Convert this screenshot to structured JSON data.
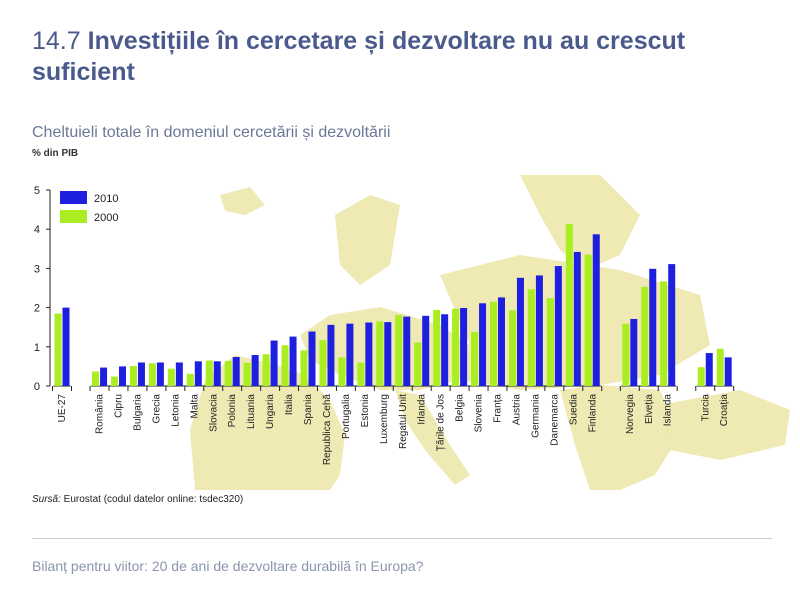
{
  "page": {
    "title_number": "14.7",
    "title_text": "Investițiile în cercetare și dezvoltare nu au crescut suficient",
    "subtitle": "Cheltuieli totale în domeniul cercetării și dezvoltării",
    "unit": "% din PIB",
    "source_label": "Sursă:",
    "source_text": " Eurostat (codul datelor online: tsdec320)",
    "footer": "Bilanț pentru viitor: 20 de ani de dezvoltare durabilă în Europa?"
  },
  "chart_data": {
    "type": "bar",
    "ylabel": "% din PIB",
    "ylim": [
      0,
      5
    ],
    "yticks": [
      0,
      1,
      2,
      3,
      4,
      5
    ],
    "grid": false,
    "legend_position": "top-left",
    "background": "map of Europe",
    "colors": {
      "2010": "#1f1fe0",
      "2000": "#aaee22",
      "axis": "#222222",
      "map": "#efe9b3"
    },
    "categories": [
      "UE-27",
      "România",
      "Cipru",
      "Bulgaria",
      "Grecia",
      "Letonia",
      "Malta",
      "Slovacia",
      "Polonia",
      "Lituania",
      "Ungaria",
      "Italia",
      "Spania",
      "Republica Cehă",
      "Portugalia",
      "Estonia",
      "Luxemburg",
      "Regatul Unit",
      "Irlanda",
      "Țările de Jos",
      "Belgia",
      "Slovenia",
      "Franța",
      "Austria",
      "Germania",
      "Danemarca",
      "Suedia",
      "Finlanda",
      "Norvegia",
      "Elveția",
      "Islanda",
      "Turcia",
      "Croația"
    ],
    "groups": [
      1,
      27,
      3,
      2
    ],
    "series": [
      {
        "name": "2010",
        "values": [
          2.0,
          0.47,
          0.5,
          0.6,
          0.6,
          0.6,
          0.63,
          0.63,
          0.74,
          0.79,
          1.16,
          1.26,
          1.39,
          1.56,
          1.59,
          1.62,
          1.63,
          1.77,
          1.79,
          1.83,
          1.99,
          2.11,
          2.26,
          2.76,
          2.82,
          3.06,
          3.42,
          3.87,
          1.71,
          2.99,
          3.11,
          0.84,
          0.73
        ]
      },
      {
        "name": "2000",
        "values": [
          1.85,
          0.37,
          0.24,
          0.51,
          0.58,
          0.44,
          0.31,
          0.65,
          0.64,
          0.59,
          0.81,
          1.04,
          0.91,
          1.17,
          0.73,
          0.6,
          1.65,
          1.81,
          1.11,
          1.94,
          1.97,
          1.38,
          2.15,
          1.93,
          2.47,
          2.24,
          4.13,
          3.35,
          1.59,
          2.53,
          2.67,
          0.48,
          0.95
        ]
      }
    ]
  }
}
